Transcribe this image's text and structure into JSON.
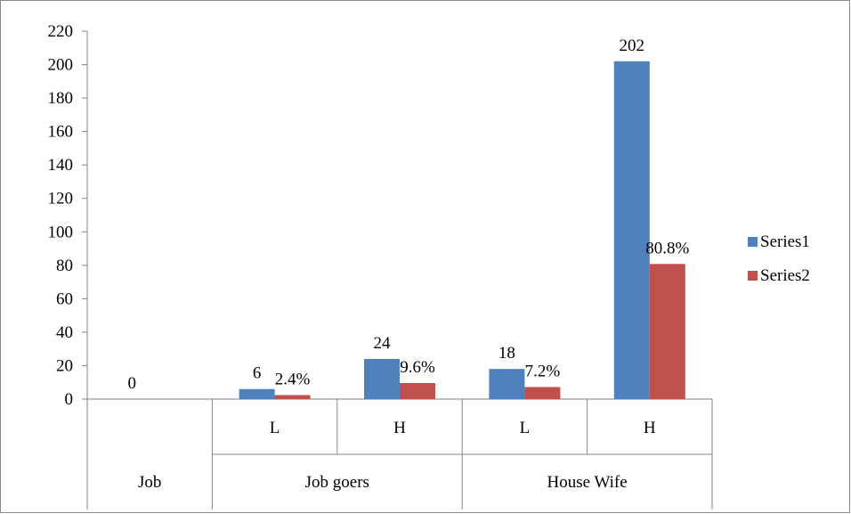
{
  "chart_data": {
    "type": "bar",
    "title": "",
    "xlabel": "",
    "ylabel": "",
    "ylim": [
      0,
      220
    ],
    "yticks": [
      0,
      20,
      40,
      60,
      80,
      100,
      120,
      140,
      160,
      180,
      200,
      220
    ],
    "grid": false,
    "legend_position": "right",
    "slots": [
      {
        "sub": "",
        "group": "Job"
      },
      {
        "sub": "L",
        "group": "Job goers"
      },
      {
        "sub": "H",
        "group": "Job goers"
      },
      {
        "sub": "L",
        "group": "House Wife"
      },
      {
        "sub": "H",
        "group": "House Wife"
      }
    ],
    "groups": [
      {
        "label": "Job",
        "span": 1
      },
      {
        "label": "Job goers",
        "span": 2
      },
      {
        "label": "House Wife",
        "span": 2
      }
    ],
    "series": [
      {
        "name": "Series1",
        "color": "#4F81BD",
        "values": [
          0,
          6,
          24,
          18,
          202
        ],
        "labels": [
          "0",
          "6",
          "24",
          "18",
          "202"
        ]
      },
      {
        "name": "Series2",
        "color": "#C0504D",
        "values": [
          null,
          2.4,
          9.6,
          7.2,
          80.8
        ],
        "labels": [
          "",
          "2.4%",
          "9.6%",
          "7.2%",
          "80.8%"
        ]
      }
    ]
  }
}
